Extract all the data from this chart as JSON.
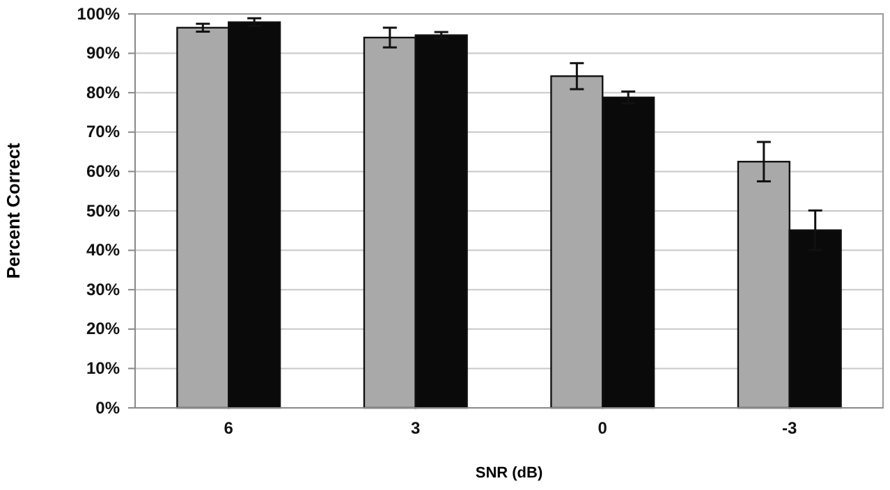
{
  "chart_data": {
    "type": "bar",
    "xlabel": "SNR (dB)",
    "ylabel": "Percent Correct",
    "categories": [
      "6",
      "3",
      "0",
      "-3"
    ],
    "series": [
      {
        "color": "#a9a9a9",
        "values": [
          96.5,
          94,
          84.2,
          62.5
        ],
        "errors": [
          1,
          2.5,
          3.3,
          5
        ]
      },
      {
        "color": "#0a0a0a",
        "values": [
          97.9,
          94.6,
          78.8,
          45.1
        ],
        "errors": [
          1,
          0.8,
          1.5,
          5
        ]
      }
    ],
    "ylim": [
      0,
      100
    ],
    "yticks": [
      {
        "value": 0,
        "label": "0%"
      },
      {
        "value": 10,
        "label": "10%"
      },
      {
        "value": 20,
        "label": "20%"
      },
      {
        "value": 30,
        "label": "30%"
      },
      {
        "value": 40,
        "label": "40%"
      },
      {
        "value": 50,
        "label": "50%"
      },
      {
        "value": 60,
        "label": "60%"
      },
      {
        "value": 70,
        "label": "70%"
      },
      {
        "value": 80,
        "label": "80%"
      },
      {
        "value": 90,
        "label": "90%"
      },
      {
        "value": 100,
        "label": "100%"
      }
    ],
    "grid": "y"
  }
}
